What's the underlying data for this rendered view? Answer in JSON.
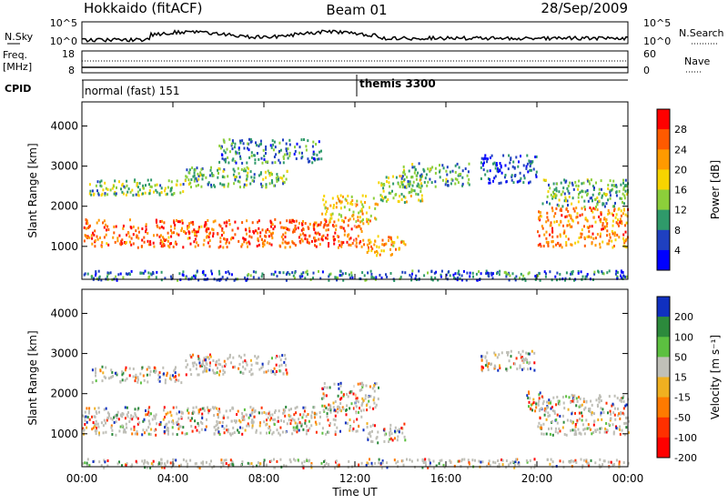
{
  "header": {
    "station": "Hokkaido (fitACF)",
    "beam": "Beam 01",
    "date": "28/Sep/2009"
  },
  "top_panels": {
    "nsky_label": "N.Sky",
    "nsky_ticks": [
      "10^5",
      "10^0"
    ],
    "nsky_right_ticks": [
      "10^5",
      "10^0"
    ],
    "nsearch_label": "N.Search",
    "freq_label_1": "Freq.",
    "freq_label_2": "[MHz]",
    "freq_ticks": [
      "18",
      "8"
    ],
    "nave_ticks": [
      "60",
      "0"
    ],
    "nave_label": "Nave",
    "cpid_label": "CPID",
    "cpid_1": "normal (fast) 151",
    "cpid_2": "themis 3300"
  },
  "chart_data": [
    {
      "type": "heatmap",
      "title": "",
      "xlabel": "Time UT",
      "ylabel": "Slant Range [km]",
      "x_ticks": [
        "00:00",
        "04:00",
        "08:00",
        "12:00",
        "16:00",
        "20:00",
        "00:00"
      ],
      "x_tick_hours": [
        0,
        4,
        8,
        12,
        16,
        20,
        24
      ],
      "xlim_hours": [
        0,
        24
      ],
      "y_ticks": [
        1000,
        2000,
        3000,
        4000
      ],
      "ylim": [
        180,
        4600
      ],
      "colorbar_label": "Power [dB]",
      "colorbar_ticks": [
        "28",
        "24",
        "20",
        "16",
        "12",
        "8",
        "4"
      ],
      "colorbar_colors": [
        "#ff0000",
        "#ff5a00",
        "#ff9a00",
        "#f7d400",
        "#8ccf3a",
        "#2f9a6a",
        "#1f40c0",
        "#0000ff"
      ],
      "regions": [
        {
          "t0": 0.0,
          "t1": 12.4,
          "r0": 1000,
          "r1": 1700,
          "lvl": 0.85
        },
        {
          "t0": 0.3,
          "t1": 4.5,
          "r0": 2300,
          "r1": 2700,
          "lvl": 0.4
        },
        {
          "t0": 4.5,
          "t1": 9.0,
          "r0": 2500,
          "r1": 3000,
          "lvl": 0.35
        },
        {
          "t0": 6.0,
          "t1": 10.5,
          "r0": 3100,
          "r1": 3700,
          "lvl": 0.25
        },
        {
          "t0": 10.5,
          "t1": 13.0,
          "r0": 1600,
          "r1": 2300,
          "lvl": 0.6
        },
        {
          "t0": 12.5,
          "t1": 14.2,
          "r0": 800,
          "r1": 1300,
          "lvl": 0.7
        },
        {
          "t0": 13.0,
          "t1": 15.0,
          "r0": 2100,
          "r1": 2800,
          "lvl": 0.45
        },
        {
          "t0": 14.0,
          "t1": 17.0,
          "r0": 2500,
          "r1": 3100,
          "lvl": 0.3
        },
        {
          "t0": 17.5,
          "t1": 20.0,
          "r0": 2600,
          "r1": 3300,
          "lvl": 0.15
        },
        {
          "t0": 20.0,
          "t1": 24.0,
          "r0": 1000,
          "r1": 2000,
          "lvl": 0.75
        },
        {
          "t0": 20.2,
          "t1": 24.0,
          "r0": 2000,
          "r1": 2700,
          "lvl": 0.35
        },
        {
          "t0": 0.0,
          "t1": 24.0,
          "r0": 180,
          "r1": 420,
          "lvl": 0.2
        }
      ]
    },
    {
      "type": "heatmap",
      "title": "",
      "xlabel": "Time UT",
      "ylabel": "Slant Range [km]",
      "x_ticks": [
        "00:00",
        "04:00",
        "08:00",
        "12:00",
        "16:00",
        "20:00",
        "00:00"
      ],
      "x_tick_hours": [
        0,
        4,
        8,
        12,
        16,
        20,
        24
      ],
      "xlim_hours": [
        0,
        24
      ],
      "y_ticks": [
        1000,
        2000,
        3000,
        4000
      ],
      "ylim": [
        180,
        4600
      ],
      "colorbar_label": "Velocity [m s⁻¹]",
      "colorbar_ticks": [
        "200",
        "100",
        "50",
        "15",
        "-15",
        "-50",
        "-100",
        "-200"
      ],
      "colorbar_colors": [
        "#1030c0",
        "#2c8a3c",
        "#5cc040",
        "#c0c0b8",
        "#f0b020",
        "#ff7a00",
        "#ff3000",
        "#ff0000"
      ],
      "ground_scatter_color": "#bebeb6",
      "regions": [
        {
          "t0": 0.0,
          "t1": 12.4,
          "r0": 1000,
          "r1": 1700,
          "lvl": 0.5
        },
        {
          "t0": 0.3,
          "t1": 4.5,
          "r0": 2300,
          "r1": 2700,
          "lvl": 0.5
        },
        {
          "t0": 4.5,
          "t1": 9.0,
          "r0": 2500,
          "r1": 3000,
          "lvl": 0.6
        },
        {
          "t0": 10.5,
          "t1": 13.0,
          "r0": 1600,
          "r1": 2300,
          "lvl": 0.5
        },
        {
          "t0": 12.5,
          "t1": 14.2,
          "r0": 800,
          "r1": 1300,
          "lvl": 0.55
        },
        {
          "t0": 17.5,
          "t1": 20.0,
          "r0": 2600,
          "r1": 3100,
          "lvl": 0.5
        },
        {
          "t0": 20.0,
          "t1": 24.0,
          "r0": 1000,
          "r1": 2000,
          "lvl": 0.5
        },
        {
          "t0": 19.5,
          "t1": 20.3,
          "r0": 1600,
          "r1": 2100,
          "lvl": 0.3
        },
        {
          "t0": 0.0,
          "t1": 24.0,
          "r0": 180,
          "r1": 400,
          "lvl": 0.6
        }
      ]
    }
  ]
}
